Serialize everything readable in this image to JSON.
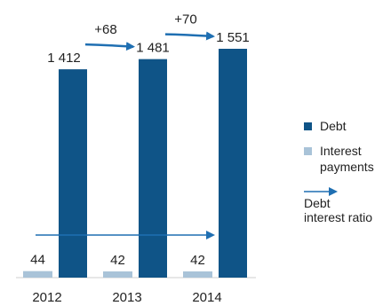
{
  "chart_data": {
    "type": "bar",
    "categories": [
      "2012",
      "2013",
      "2014"
    ],
    "series": [
      {
        "name": "Debt",
        "values": [
          1412,
          1481,
          1551
        ],
        "color": "#0f5487"
      },
      {
        "name": "Interest payments",
        "values": [
          44,
          42,
          42
        ],
        "color": "#a9c3d8"
      }
    ],
    "changes": [
      {
        "from": "2012",
        "to": "2013",
        "label": "+68"
      },
      {
        "from": "2013",
        "to": "2014",
        "label": "+70"
      }
    ],
    "value_labels": {
      "Debt": [
        "1 412",
        "1 481",
        "1 551"
      ],
      "Interest payments": [
        "44",
        "42",
        "42"
      ]
    },
    "ratio_arrow": {
      "name": "Debt interest ratio",
      "color": "#1f6fb2"
    },
    "legend": {
      "debt": "Debt",
      "interest_line1": "Interest",
      "interest_line2": "payments",
      "ratio_line1": "Debt",
      "ratio_line2": "interest ratio",
      "position": "right"
    },
    "axis_color": "#cfcfcf",
    "grid": false
  }
}
